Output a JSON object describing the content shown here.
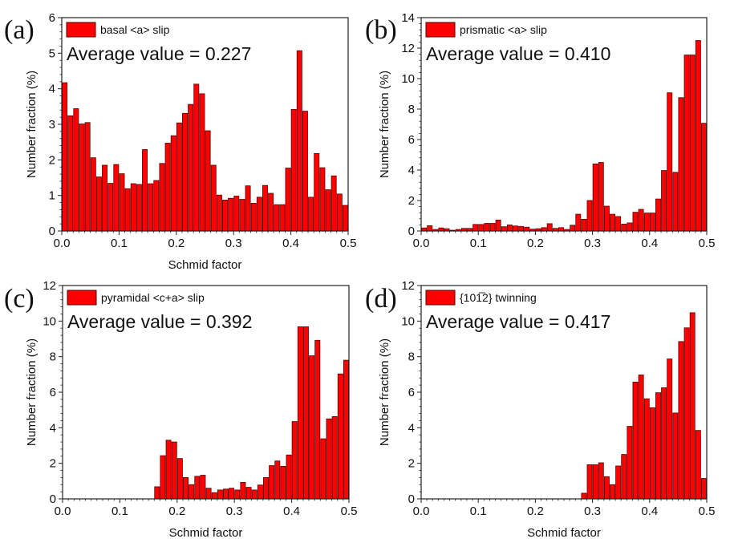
{
  "figure": {
    "bar_color": "#ff0000",
    "bar_edge_color": "#5a0000"
  },
  "chart_data": [
    {
      "id": "a",
      "type": "bar",
      "panel_label": "(a)",
      "legend": "basal <a> slip",
      "annotation": "Average value = 0.227",
      "xlabel": "Schmid factor",
      "ylabel": "Number fraction (%)",
      "xlim": [
        0,
        0.5
      ],
      "ylim": [
        0,
        6
      ],
      "xticks": [
        "0.0",
        "0.1",
        "0.2",
        "0.3",
        "0.4",
        "0.5"
      ],
      "yticks": [
        "0",
        "1",
        "2",
        "3",
        "4",
        "5",
        "6"
      ],
      "bin_width": 0.01,
      "bin_start": 0.0,
      "values": [
        4.17,
        3.24,
        3.44,
        3.01,
        3.05,
        2.06,
        1.52,
        1.85,
        1.34,
        1.87,
        1.61,
        1.19,
        1.33,
        1.31,
        2.29,
        1.33,
        1.42,
        1.9,
        2.47,
        2.68,
        3.04,
        3.31,
        3.56,
        4.13,
        3.86,
        2.82,
        1.85,
        1.01,
        0.87,
        0.92,
        0.98,
        0.89,
        1.27,
        0.78,
        0.95,
        1.28,
        1.06,
        0.74,
        0.74,
        1.77,
        3.42,
        5.07,
        3.37,
        0.95,
        2.18,
        1.78,
        1.16,
        1.55,
        1.04,
        0.72
      ]
    },
    {
      "id": "b",
      "type": "bar",
      "panel_label": "(b)",
      "legend": "prismatic <a> slip",
      "annotation": "Average value = 0.410",
      "xlabel": "",
      "ylabel": "Number fraction (%)",
      "xlim": [
        0,
        0.5
      ],
      "ylim": [
        0,
        14
      ],
      "xticks": [
        "0.0",
        "0.1",
        "0.2",
        "0.3",
        "0.4",
        "0.5"
      ],
      "yticks": [
        "0",
        "2",
        "4",
        "6",
        "8",
        "10",
        "12",
        "14"
      ],
      "bin_width": 0.01,
      "bin_start": 0.0,
      "values": [
        0.2,
        0.35,
        0.1,
        0.2,
        0.15,
        0.05,
        0.1,
        0.17,
        0.17,
        0.43,
        0.43,
        0.5,
        0.5,
        0.72,
        0.28,
        0.4,
        0.33,
        0.3,
        0.25,
        0.12,
        0.15,
        0.22,
        0.48,
        0.17,
        0.22,
        0.1,
        0.38,
        1.1,
        0.77,
        2.0,
        4.4,
        4.5,
        1.63,
        1.1,
        0.95,
        0.45,
        0.53,
        1.23,
        1.42,
        1.18,
        1.18,
        2.1,
        3.97,
        9.07,
        3.85,
        8.75,
        11.55,
        11.55,
        12.5,
        7.07
      ]
    },
    {
      "id": "c",
      "type": "bar",
      "panel_label": "(c)",
      "legend": "pyramidal <c+a> slip",
      "annotation": "Average value = 0.392",
      "xlabel": "Schmid factor",
      "ylabel": "Number fraction (%)",
      "xlim": [
        0,
        0.5
      ],
      "ylim": [
        0,
        12
      ],
      "xticks": [
        "0.0",
        "0.1",
        "0.2",
        "0.3",
        "0.4",
        "0.5"
      ],
      "yticks": [
        "0",
        "2",
        "4",
        "6",
        "8",
        "10",
        "12"
      ],
      "bin_width": 0.01,
      "bin_start": 0.0,
      "values": [
        0,
        0,
        0,
        0,
        0,
        0,
        0,
        0,
        0,
        0,
        0,
        0,
        0,
        0,
        0,
        0,
        0.68,
        2.43,
        3.3,
        3.2,
        2.27,
        1.2,
        0.8,
        1.27,
        1.33,
        0.6,
        0.35,
        0.5,
        0.55,
        0.6,
        0.5,
        0.93,
        0.65,
        0.5,
        0.78,
        1.2,
        1.87,
        2.13,
        1.83,
        2.47,
        4.35,
        9.68,
        9.68,
        8.05,
        8.92,
        3.38,
        4.5,
        4.63,
        7.03,
        7.8
      ]
    },
    {
      "id": "d",
      "type": "bar",
      "panel_label": "(d)",
      "legend": "{101̅2} twinning",
      "annotation": "Average value = 0.417",
      "xlabel": "Schmid factor",
      "ylabel": "Number fraction (%)",
      "xlim": [
        0,
        0.5
      ],
      "ylim": [
        0,
        12
      ],
      "xticks": [
        "0.0",
        "0.1",
        "0.2",
        "0.3",
        "0.4",
        "0.5"
      ],
      "yticks": [
        "0",
        "2",
        "4",
        "6",
        "8",
        "10",
        "12"
      ],
      "bin_width": 0.01,
      "bin_start": 0.0,
      "values": [
        0,
        0,
        0,
        0,
        0,
        0,
        0,
        0,
        0,
        0,
        0,
        0,
        0,
        0,
        0,
        0,
        0,
        0,
        0,
        0,
        0,
        0,
        0,
        0,
        0,
        0,
        0,
        0,
        0.32,
        1.92,
        1.92,
        2.03,
        1.25,
        0.8,
        1.85,
        2.5,
        4.08,
        6.57,
        6.97,
        5.63,
        5.13,
        5.97,
        6.25,
        7.87,
        4.83,
        8.85,
        9.62,
        10.47,
        3.85,
        1.15
      ]
    }
  ]
}
